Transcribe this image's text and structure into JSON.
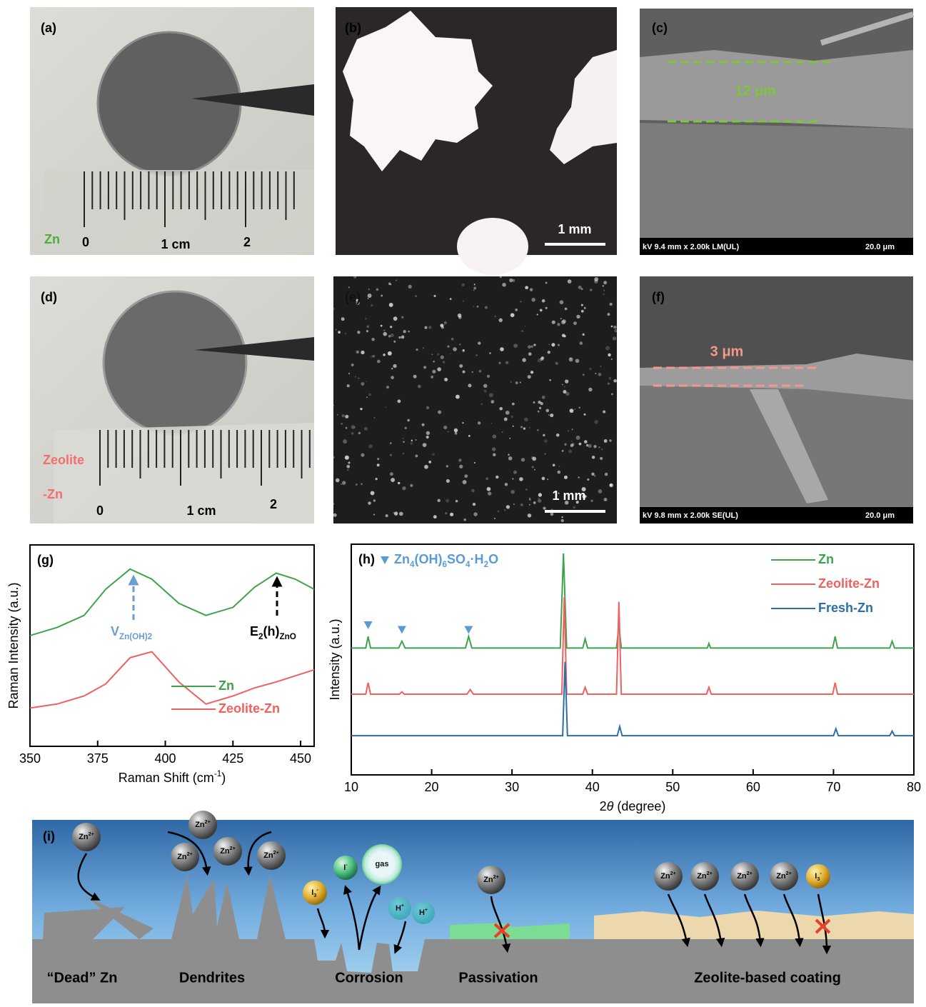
{
  "photos": [
    {
      "label": "(a)",
      "sample": [
        "Zn"
      ],
      "ruler": [
        "0",
        "1 cm",
        "2"
      ]
    },
    {
      "label": "(b)",
      "scale": "1 mm"
    },
    {
      "label": "(c)",
      "thickness": "12 μm",
      "info": "kV 9.4 mm x 2.00k LM(UL)",
      "scale": "20.0 μm"
    },
    {
      "label": "(d)",
      "sample": [
        "Zeolite",
        "-Zn"
      ],
      "ruler": [
        "0",
        "1 cm",
        "2"
      ]
    },
    {
      "label": "(e)",
      "scale": "1 mm"
    },
    {
      "label": "(f)",
      "thickness": "3 μm",
      "info": "kV 9.8 mm x 2.00k SE(UL)",
      "scale": "20.0 μm"
    }
  ],
  "chart_data": [
    {
      "type": "line",
      "label": "(g)",
      "xlabel": [
        {
          "text": "Raman Shift (cm"
        },
        {
          "sup": "-1"
        },
        {
          "text": ")"
        }
      ],
      "ylabel": "Raman Intensity (a.u.)",
      "xlim": [
        350,
        455
      ],
      "ylim": [
        0,
        10
      ],
      "xticks": [
        350,
        375,
        400,
        425,
        450
      ],
      "legend": "lower right",
      "x": [
        350,
        360,
        370,
        378,
        387,
        395,
        405,
        415,
        425,
        433,
        441,
        448,
        455
      ],
      "series": [
        {
          "name": "Zn",
          "color": "#3fa34d",
          "values": [
            5.5,
            5.9,
            6.5,
            7.8,
            8.8,
            8.3,
            7.1,
            6.5,
            6.9,
            7.9,
            8.6,
            8.3,
            7.8
          ]
        },
        {
          "name": "Zeolite-Zn",
          "color": "#f0605d",
          "values": [
            1.9,
            2.1,
            2.5,
            3.1,
            4.4,
            4.7,
            3.2,
            2.1,
            2.5,
            2.9,
            3.2,
            3.5,
            3.8
          ]
        }
      ],
      "annotations": [
        [
          {
            "text": "V"
          },
          {
            "sub": "Zn(OH)2"
          }
        ],
        [
          {
            "text": "E"
          },
          {
            "sub": "2"
          },
          {
            "text": "(h)"
          },
          {
            "sub": "ZnO"
          }
        ]
      ]
    },
    {
      "type": "line",
      "label": "(h)",
      "xlabel": [
        {
          "text": "2"
        },
        {
          "italic": "θ"
        },
        {
          "text": " (degree)"
        }
      ],
      "ylabel": "Intensity (a.u.)",
      "xlim": [
        10,
        80
      ],
      "ylim": [
        0,
        10
      ],
      "xticks": [
        10,
        20,
        30,
        40,
        50,
        60,
        70,
        80
      ],
      "legend": "upper right",
      "marker_legend": [
        {
          "text": "Zn"
        },
        {
          "sub": "4"
        },
        {
          "text": "(OH)"
        },
        {
          "sub": "6"
        },
        {
          "text": "SO"
        },
        {
          "sub": "4"
        },
        {
          "text": "·H"
        },
        {
          "sub": "2"
        },
        {
          "text": "O"
        }
      ],
      "markers": {
        "color": "#5b9bd5",
        "x": [
          12.1,
          16.3,
          24.6
        ],
        "y": [
          6.5,
          6.3,
          6.3
        ]
      },
      "series": [
        {
          "name": "Zn",
          "color": "#3fa34d",
          "x": [
            10,
            11.8,
            12.1,
            12.4,
            15.9,
            16.3,
            16.7,
            24.2,
            24.6,
            25,
            36,
            36.4,
            36.8,
            38.8,
            39.1,
            39.4,
            43,
            43.3,
            43.6,
            54.3,
            54.5,
            54.7,
            69.9,
            70.2,
            70.5,
            77,
            77.3,
            77.6,
            80
          ],
          "values": [
            5.5,
            5.5,
            6.0,
            5.5,
            5.5,
            5.8,
            5.5,
            5.5,
            6.0,
            5.5,
            5.5,
            9.6,
            5.5,
            5.5,
            5.9,
            5.5,
            5.5,
            6.5,
            5.5,
            5.5,
            5.7,
            5.5,
            5.5,
            6.0,
            5.5,
            5.5,
            5.8,
            5.5,
            5.5
          ]
        },
        {
          "name": "Zeolite-Zn",
          "color": "#f0605d",
          "x": [
            10,
            11.8,
            12.1,
            12.4,
            16,
            16.3,
            16.6,
            24.4,
            24.8,
            25.2,
            36.2,
            36.5,
            36.8,
            38.8,
            39.1,
            39.4,
            43,
            43.3,
            43.6,
            54.2,
            54.5,
            54.8,
            69.9,
            70.2,
            70.5,
            80
          ],
          "values": [
            3.5,
            3.5,
            4.0,
            3.5,
            3.5,
            3.6,
            3.5,
            3.5,
            3.7,
            3.5,
            3.5,
            7.7,
            3.5,
            3.5,
            3.8,
            3.5,
            3.5,
            7.5,
            3.5,
            3.5,
            3.8,
            3.5,
            3.5,
            4.0,
            3.5,
            3.5
          ]
        },
        {
          "name": "Fresh-Zn",
          "color": "#2d6ea8",
          "x": [
            10,
            36.3,
            36.6,
            36.9,
            43.1,
            43.4,
            43.7,
            70,
            70.3,
            70.6,
            77,
            77.3,
            77.6,
            80
          ],
          "values": [
            1.7,
            1.7,
            4.9,
            1.7,
            1.7,
            2.1,
            1.7,
            1.7,
            2.0,
            1.7,
            1.7,
            1.9,
            1.7,
            1.7
          ]
        }
      ]
    }
  ],
  "schematic": {
    "label": "(i)",
    "stages": [
      "“Dead” Zn",
      "Dendrites",
      "Corrosion",
      "Passivation",
      "Zeolite-based coating"
    ],
    "ions": [
      [
        {
          "text": "Zn"
        },
        {
          "sup": "2+"
        }
      ],
      [
        {
          "text": "Zn"
        },
        {
          "sup": "2+"
        }
      ],
      [
        {
          "text": "Zn"
        },
        {
          "sup": "2+"
        }
      ],
      [
        {
          "text": "Zn"
        },
        {
          "sup": "2+"
        }
      ],
      [
        {
          "text": "Zn"
        },
        {
          "sup": "2+"
        }
      ],
      [
        {
          "text": "I"
        },
        {
          "sub": "3"
        },
        {
          "sup": "-"
        }
      ],
      [
        {
          "text": "I"
        },
        {
          "sup": "-"
        }
      ],
      [
        {
          "text": "gas"
        }
      ],
      [
        {
          "text": "H"
        },
        {
          "sup": "+"
        }
      ],
      [
        {
          "text": "H"
        },
        {
          "sup": "+"
        }
      ],
      [
        {
          "text": "Zn"
        },
        {
          "sup": "2+"
        }
      ],
      [
        {
          "text": "Zn"
        },
        {
          "sup": "2+"
        }
      ],
      [
        {
          "text": "Zn"
        },
        {
          "sup": "2+"
        }
      ],
      [
        {
          "text": "Zn"
        },
        {
          "sup": "2+"
        }
      ],
      [
        {
          "text": "Zn"
        },
        {
          "sup": "2+"
        }
      ],
      [
        {
          "text": "I"
        },
        {
          "sub": "3"
        },
        {
          "sup": "-"
        }
      ]
    ]
  }
}
